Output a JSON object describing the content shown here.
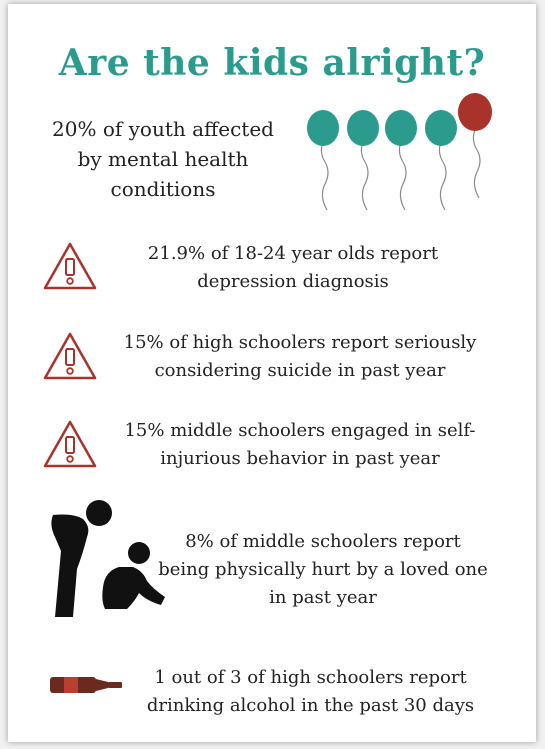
{
  "colors": {
    "teal": "#2b9b8e",
    "red": "#a9322a",
    "dark": "#1a1a1a"
  },
  "title": "Are the kids alright?",
  "intro": "20% of youth affected by mental health conditions",
  "icons": {
    "balloons": "balloons-icon",
    "warning": "warning-icon",
    "people": "sad-person-icon",
    "bottle": "bottle-icon"
  },
  "stats": [
    {
      "text": "21.9% of 18-24 year olds report depression diagnosis"
    },
    {
      "text": "15% of high schoolers report seriously considering suicide in past year"
    },
    {
      "text": "15% middle schoolers engaged in self-injurious behavior in past year"
    },
    {
      "text": "8% of middle schoolers report being physically hurt by a loved one in past year"
    },
    {
      "text": "1 out of 3 of high schoolers report drinking alcohol in the past 30 days"
    }
  ]
}
